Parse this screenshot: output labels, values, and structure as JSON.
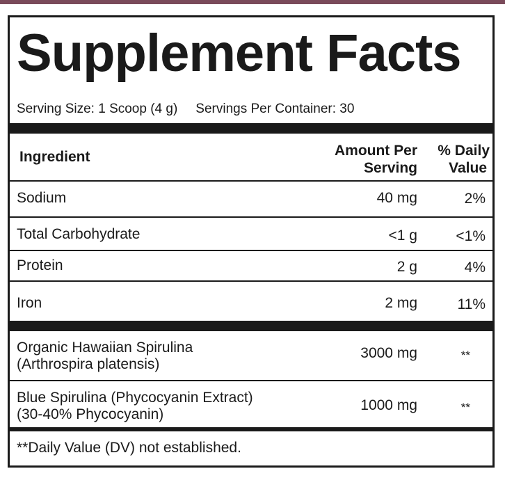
{
  "panel": {
    "title": "Supplement Facts",
    "serving_size": "Serving Size: 1 Scoop (4 g)",
    "servings_per_container": "Servings Per Container: 30"
  },
  "table": {
    "headers": {
      "ingredient": "Ingredient",
      "amount_line1": "Amount Per",
      "amount_line2": "Serving",
      "dv_line1": "% Daily",
      "dv_line2": "Value"
    },
    "nutrients": [
      {
        "name": "Sodium",
        "amount": "40 mg",
        "dv": "2%"
      },
      {
        "name": "Total Carbohydrate",
        "amount": "<1 g",
        "dv": "<1%"
      },
      {
        "name": "Protein",
        "amount": "2 g",
        "dv": "4%"
      },
      {
        "name": "Iron",
        "amount": "2 mg",
        "dv": "11%"
      }
    ],
    "other_ingredients": [
      {
        "name_line1": "Organic Hawaiian Spirulina",
        "name_line2": "(Arthrospira platensis)",
        "amount": "3000 mg",
        "dv": "**"
      },
      {
        "name_line1": "Blue Spirulina (Phycocyanin Extract)",
        "name_line2": "(30-40% Phycocyanin)",
        "amount": "1000 mg",
        "dv": "**"
      }
    ]
  },
  "footnote": "**Daily Value (DV) not established."
}
